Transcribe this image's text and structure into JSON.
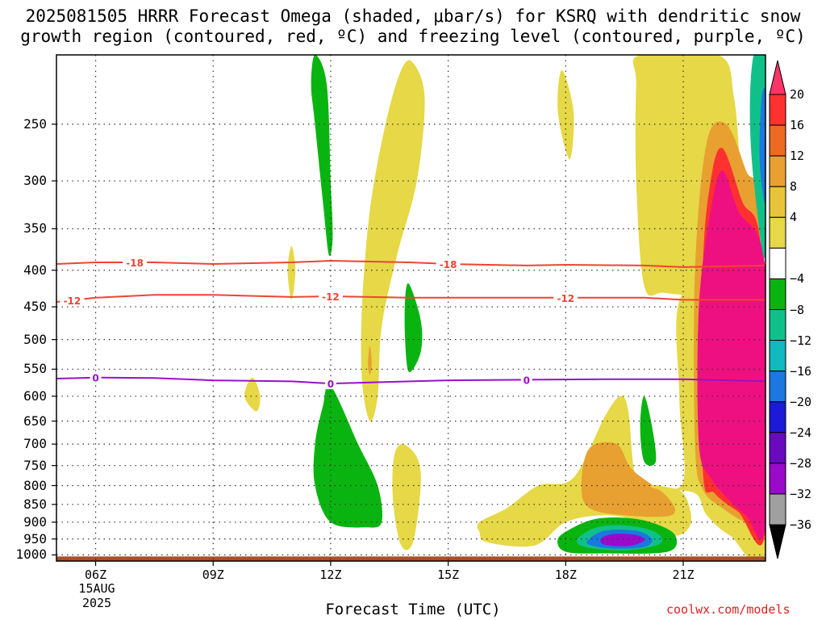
{
  "title": {
    "line1": "2025081505 HRRR Forecast Omega (shaded, μbar/s) for KSRQ with dendritic snow",
    "line2": "growth region (contoured, red, ºC) and freezing level (contoured, purple, ºC)"
  },
  "xlabel": "Forecast Time (UTC)",
  "credit": "coolwx.com/models",
  "date_label": {
    "day": "15AUG",
    "year": "2025"
  },
  "chart_data": {
    "type": "heatmap",
    "title": "2025081505 HRRR Forecast Omega (shaded, μbar/s) for KSRQ with dendritic snow growth region (contoured, red, ºC) and freezing level (contoured, purple, ºC)",
    "xlabel": "Forecast Time (UTC)",
    "ylabel": "",
    "x_ticks": [
      {
        "hour": 6,
        "label": "06Z"
      },
      {
        "hour": 9,
        "label": "09Z"
      },
      {
        "hour": 12,
        "label": "12Z"
      },
      {
        "hour": 15,
        "label": "15Z"
      },
      {
        "hour": 18,
        "label": "18Z"
      },
      {
        "hour": 21,
        "label": "21Z"
      }
    ],
    "x_range_hours": [
      5,
      23.1
    ],
    "y_ticks": [
      250,
      300,
      350,
      400,
      450,
      500,
      550,
      600,
      650,
      700,
      750,
      800,
      850,
      900,
      950,
      1000
    ],
    "y_range_hPa": [
      200,
      1020
    ],
    "grid": true,
    "colorbar": {
      "labels": [
        20,
        16,
        12,
        8,
        4,
        -4,
        -8,
        -12,
        -16,
        -20,
        -24,
        -28,
        -32,
        -36
      ],
      "bins": [
        {
          "color": "#ff3366",
          "label": "20+"
        },
        {
          "color": "#ff3030"
        },
        {
          "color": "#ee6a22"
        },
        {
          "color": "#e8a030"
        },
        {
          "color": "#e8c43a"
        },
        {
          "color": "#e6d846"
        },
        {
          "color": "#ffffff"
        },
        {
          "color": "#0ab410"
        },
        {
          "color": "#10c08a"
        },
        {
          "color": "#10b8c0"
        },
        {
          "color": "#1a78e0"
        },
        {
          "color": "#1a1ad8"
        },
        {
          "color": "#6a0ac0"
        },
        {
          "color": "#9a0aca"
        },
        {
          "color": "#a0a0a0"
        },
        {
          "color": "#000000"
        }
      ]
    },
    "contours": [
      {
        "name": "-18",
        "color": "#ee4433",
        "label": "-18",
        "points": [
          [
            5,
            392
          ],
          [
            6,
            390
          ],
          [
            7.5,
            390
          ],
          [
            9,
            392
          ],
          [
            11,
            390
          ],
          [
            12,
            388
          ],
          [
            14,
            390
          ],
          [
            15,
            392
          ],
          [
            17,
            394
          ],
          [
            18,
            393
          ],
          [
            20,
            394
          ],
          [
            21,
            396
          ],
          [
            23.1,
            394
          ]
        ],
        "labels_at_hours": [
          7,
          15
        ]
      },
      {
        "name": "-12",
        "color": "#ee4433",
        "label": "-12",
        "points": [
          [
            5,
            443
          ],
          [
            6,
            437
          ],
          [
            7.5,
            433
          ],
          [
            9,
            433
          ],
          [
            11,
            436
          ],
          [
            12,
            435
          ],
          [
            14,
            437
          ],
          [
            16,
            437
          ],
          [
            18,
            437
          ],
          [
            20,
            437
          ],
          [
            21,
            440
          ],
          [
            23.1,
            440
          ]
        ],
        "labels_at_hours": [
          5.4,
          12,
          18
        ]
      },
      {
        "name": "0",
        "color": "#9a10c8",
        "label": "0",
        "points": [
          [
            5,
            567
          ],
          [
            6,
            565
          ],
          [
            7.5,
            566
          ],
          [
            9,
            570
          ],
          [
            11,
            572
          ],
          [
            12,
            576
          ],
          [
            13,
            574
          ],
          [
            15,
            570
          ],
          [
            17,
            569
          ],
          [
            19,
            568
          ],
          [
            21,
            568
          ],
          [
            23.1,
            572
          ]
        ],
        "labels_at_hours": [
          6,
          12,
          17
        ]
      }
    ],
    "omega_features": [
      {
        "id": "green-upper-12z",
        "value": -6,
        "color": "#0ab410",
        "points": [
          [
            11.6,
            200
          ],
          [
            11.9,
            220
          ],
          [
            12,
            300
          ],
          [
            12.05,
            360
          ],
          [
            11.95,
            380
          ],
          [
            11.8,
            320
          ],
          [
            11.6,
            250
          ],
          [
            11.5,
            220
          ]
        ]
      },
      {
        "id": "yellow-band-13z",
        "value": 5,
        "color": "#e6d846",
        "points": [
          [
            14.1,
            205
          ],
          [
            14.4,
            230
          ],
          [
            14.2,
            300
          ],
          [
            13.7,
            380
          ],
          [
            13.3,
            480
          ],
          [
            13.2,
            600
          ],
          [
            13.0,
            650
          ],
          [
            12.8,
            570
          ],
          [
            12.8,
            450
          ],
          [
            13.0,
            330
          ],
          [
            13.4,
            250
          ],
          [
            13.8,
            210
          ]
        ]
      },
      {
        "id": "orange-streak-13z",
        "value": 9,
        "color": "#e8a030",
        "points": [
          [
            13.0,
            510
          ],
          [
            13.05,
            540
          ],
          [
            13.0,
            560
          ],
          [
            12.95,
            540
          ]
        ]
      },
      {
        "id": "green-mid-14z",
        "value": -6,
        "color": "#0ab410",
        "points": [
          [
            14.0,
            418
          ],
          [
            14.3,
            470
          ],
          [
            14.3,
            520
          ],
          [
            14.0,
            555
          ],
          [
            13.9,
            500
          ],
          [
            13.9,
            440
          ]
        ]
      },
      {
        "id": "yellow-small-11z",
        "value": 5,
        "color": "#e6d846",
        "points": [
          [
            11.0,
            370
          ],
          [
            11.1,
            400
          ],
          [
            11.0,
            440
          ],
          [
            10.9,
            400
          ]
        ]
      },
      {
        "id": "yellow-small-10z",
        "value": 5,
        "color": "#e6d846",
        "points": [
          [
            10.0,
            565
          ],
          [
            10.2,
            600
          ],
          [
            10.1,
            630
          ],
          [
            9.8,
            600
          ]
        ]
      },
      {
        "id": "green-lower-12z",
        "value": -6,
        "color": "#0ab410",
        "points": [
          [
            12.0,
            580
          ],
          [
            12.7,
            700
          ],
          [
            13.2,
            800
          ],
          [
            13.3,
            900
          ],
          [
            12.9,
            915
          ],
          [
            12.0,
            900
          ],
          [
            11.6,
            800
          ],
          [
            11.6,
            700
          ],
          [
            11.8,
            620
          ]
        ]
      },
      {
        "id": "yellow-lower-14z",
        "value": 5,
        "color": "#e6d846",
        "points": [
          [
            13.8,
            700
          ],
          [
            14.2,
            730
          ],
          [
            14.3,
            800
          ],
          [
            14.1,
            960
          ],
          [
            13.8,
            970
          ],
          [
            13.6,
            850
          ],
          [
            13.6,
            740
          ]
        ]
      },
      {
        "id": "yellow-upper-18z",
        "value": 5,
        "color": "#e6d846",
        "points": [
          [
            17.9,
            210
          ],
          [
            18.2,
            240
          ],
          [
            18.1,
            280
          ],
          [
            17.8,
            240
          ]
        ]
      },
      {
        "id": "yellow-lower-band-18z",
        "value": 5,
        "color": "#e6d846",
        "points": [
          [
            15.8,
            900
          ],
          [
            16.5,
            860
          ],
          [
            17.3,
            800
          ],
          [
            18.2,
            780
          ],
          [
            19.0,
            640
          ],
          [
            19.4,
            600
          ],
          [
            19.6,
            630
          ],
          [
            19.8,
            780
          ],
          [
            20.4,
            800
          ],
          [
            21.0,
            820
          ],
          [
            21.2,
            900
          ],
          [
            20.8,
            940
          ],
          [
            20.0,
            900
          ],
          [
            19.0,
            880
          ],
          [
            18.0,
            900
          ],
          [
            17.2,
            970
          ],
          [
            16.0,
            960
          ],
          [
            15.8,
            930
          ]
        ]
      },
      {
        "id": "orange-lower-19z",
        "value": 9,
        "color": "#e8a030",
        "points": [
          [
            18.6,
            710
          ],
          [
            19.3,
            700
          ],
          [
            19.7,
            760
          ],
          [
            20.6,
            830
          ],
          [
            20.7,
            880
          ],
          [
            19.5,
            880
          ],
          [
            18.6,
            860
          ],
          [
            18.4,
            800
          ]
        ]
      },
      {
        "id": "green-col-20z",
        "value": -6,
        "color": "#0ab410",
        "points": [
          [
            20.0,
            600
          ],
          [
            20.2,
            660
          ],
          [
            20.3,
            740
          ],
          [
            20.0,
            740
          ],
          [
            19.9,
            660
          ]
        ]
      },
      {
        "id": "green-bowl-19z",
        "value": -6,
        "color": "#0ab410",
        "points": [
          [
            17.8,
            950
          ],
          [
            18.2,
            915
          ],
          [
            18.8,
            890
          ],
          [
            19.6,
            888
          ],
          [
            20.3,
            905
          ],
          [
            20.8,
            940
          ],
          [
            20.6,
            990
          ],
          [
            19.0,
            995
          ],
          [
            18.0,
            990
          ]
        ]
      },
      {
        "id": "teal-bowl-19z",
        "value": -10,
        "color": "#10c08a",
        "points": [
          [
            18.3,
            950
          ],
          [
            18.8,
            915
          ],
          [
            19.6,
            910
          ],
          [
            20.3,
            930
          ],
          [
            20.4,
            965
          ],
          [
            19.5,
            985
          ],
          [
            18.5,
            975
          ]
        ]
      },
      {
        "id": "blue-bowl-19z",
        "value": -18,
        "color": "#1a78e0",
        "points": [
          [
            18.6,
            950
          ],
          [
            19.0,
            925
          ],
          [
            19.8,
            925
          ],
          [
            20.2,
            950
          ],
          [
            20.0,
            975
          ],
          [
            19.2,
            980
          ],
          [
            18.6,
            968
          ]
        ]
      },
      {
        "id": "purple-bowl-19z",
        "value": -30,
        "color": "#9a0aca",
        "points": [
          [
            18.9,
            950
          ],
          [
            19.2,
            935
          ],
          [
            19.8,
            938
          ],
          [
            20.0,
            955
          ],
          [
            19.6,
            972
          ],
          [
            19.0,
            968
          ]
        ]
      },
      {
        "id": "yellow-right-21z",
        "value": 5,
        "color": "#e6d846",
        "points": [
          [
            19.9,
            200
          ],
          [
            21.9,
            200
          ],
          [
            22.3,
            230
          ],
          [
            22.5,
            300
          ],
          [
            22.8,
            320
          ],
          [
            22.9,
            400
          ],
          [
            21.5,
            430
          ],
          [
            20.5,
            430
          ],
          [
            20.0,
            420
          ],
          [
            19.8,
            300
          ],
          [
            19.8,
            220
          ]
        ]
      },
      {
        "id": "yellow-right-lower",
        "value": 5,
        "color": "#e6d846",
        "points": [
          [
            21.0,
            430
          ],
          [
            22.9,
            430
          ],
          [
            23.1,
            430
          ],
          [
            23.1,
            980
          ],
          [
            22.2,
            940
          ],
          [
            21.6,
            880
          ],
          [
            21.3,
            820
          ],
          [
            20.4,
            810
          ],
          [
            20.2,
            800
          ],
          [
            21.0,
            790
          ],
          [
            20.9,
            600
          ]
        ]
      },
      {
        "id": "orange-right",
        "value": 10,
        "color": "#e8a030",
        "points": [
          [
            21.6,
            265
          ],
          [
            22.1,
            250
          ],
          [
            22.6,
            290
          ],
          [
            23.0,
            340
          ],
          [
            23.1,
            900
          ],
          [
            22.6,
            900
          ],
          [
            22.0,
            860
          ],
          [
            21.5,
            810
          ],
          [
            21.3,
            700
          ],
          [
            21.3,
            400
          ]
        ]
      },
      {
        "id": "red-right",
        "value": 17,
        "color": "#ff3030",
        "points": [
          [
            21.7,
            300
          ],
          [
            22.0,
            270
          ],
          [
            22.5,
            320
          ],
          [
            23.0,
            380
          ],
          [
            23.1,
            920
          ],
          [
            22.4,
            870
          ],
          [
            21.8,
            820
          ],
          [
            21.5,
            760
          ],
          [
            21.5,
            400
          ]
        ]
      },
      {
        "id": "magenta-right",
        "value": 22,
        "color": "#ee1080",
        "points": [
          [
            21.7,
            330
          ],
          [
            22.0,
            290
          ],
          [
            22.4,
            330
          ],
          [
            23.1,
            400
          ],
          [
            23.1,
            900
          ],
          [
            22.6,
            880
          ],
          [
            22.1,
            830
          ],
          [
            21.7,
            780
          ],
          [
            21.4,
            700
          ],
          [
            21.4,
            450
          ]
        ]
      },
      {
        "id": "teal-right-top",
        "value": -10,
        "color": "#10c08a",
        "points": [
          [
            22.8,
            200
          ],
          [
            23.1,
            200
          ],
          [
            23.1,
            380
          ],
          [
            22.8,
            300
          ],
          [
            22.7,
            240
          ]
        ]
      },
      {
        "id": "blue-right-top",
        "value": -18,
        "color": "#1a78e0",
        "points": [
          [
            23.0,
            230
          ],
          [
            23.1,
            230
          ],
          [
            23.1,
            320
          ],
          [
            22.95,
            280
          ]
        ]
      }
    ],
    "terrain": {
      "color": "#a85028",
      "top_hPa": 1005
    }
  }
}
